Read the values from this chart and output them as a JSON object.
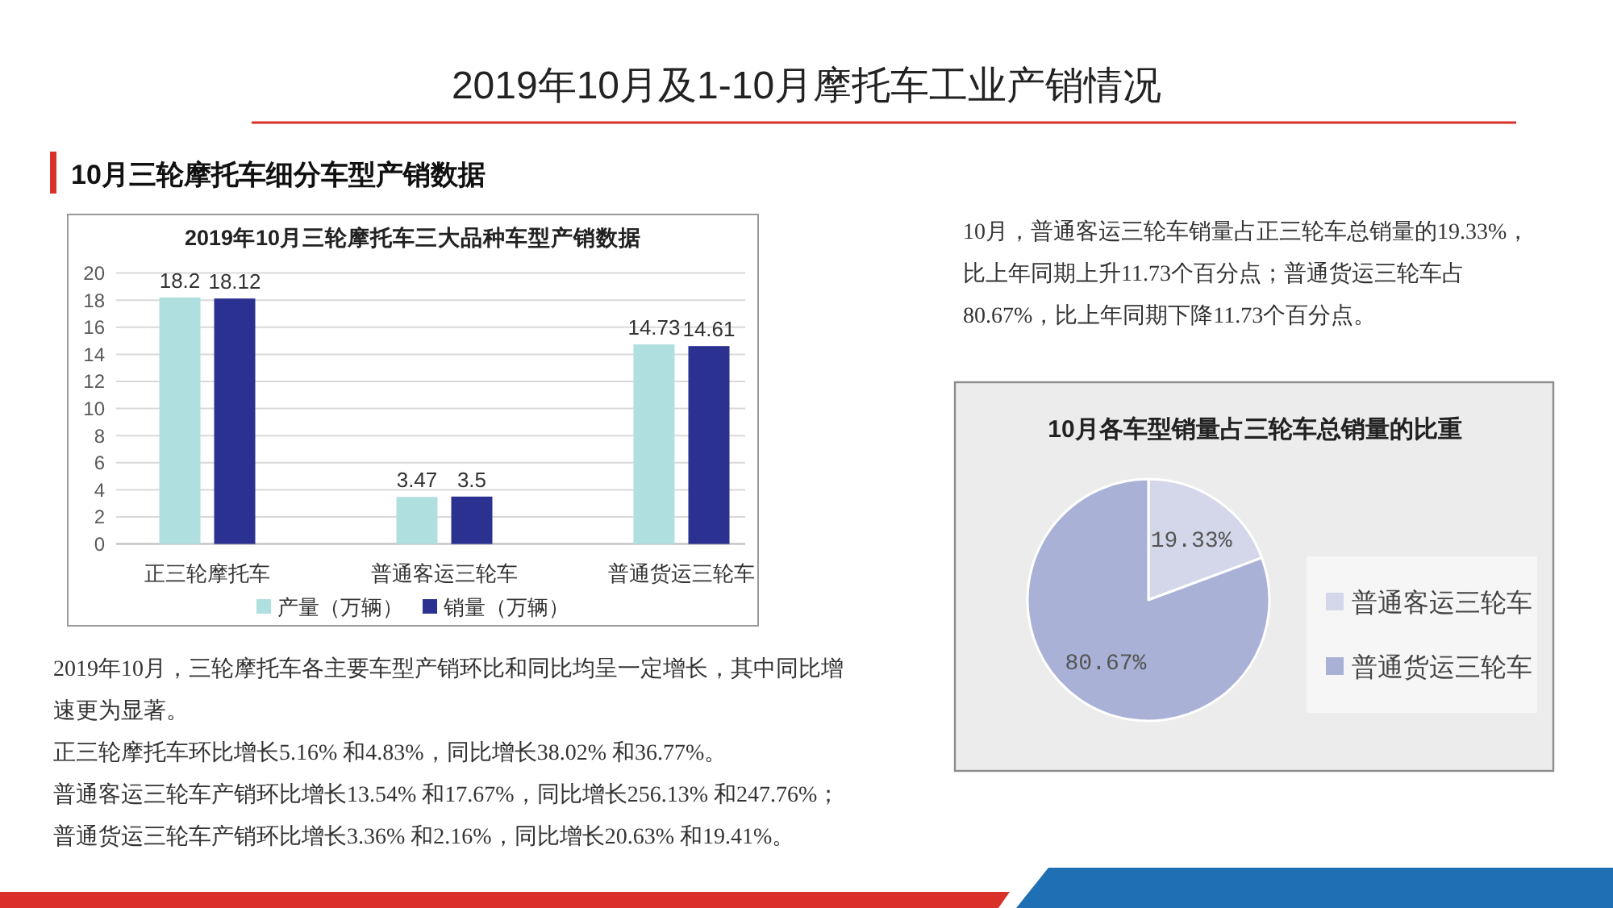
{
  "chart_data": [
    {
      "type": "other",
      "title": "2019年10月及1-10月摩托车工业产销情况",
      "subtitle": "10月三轮摩托车细分车型产销数据"
    },
    {
      "type": "bar",
      "title": "2019年10月三轮摩托车三大品种车型产销数据",
      "categories": [
        "正三轮摩托车",
        "普通客运三轮车",
        "普通货运三轮车"
      ],
      "series": [
        {
          "name": "产量（万辆）",
          "color": "#b0dfdf",
          "values": [
            18.2,
            3.47,
            14.73
          ]
        },
        {
          "name": "销量（万辆）",
          "color": "#2b3190",
          "values": [
            18.12,
            3.5,
            14.61
          ]
        }
      ],
      "ylim": [
        0,
        20
      ],
      "yticks": [
        0,
        2,
        4,
        6,
        8,
        10,
        12,
        14,
        16,
        18,
        20
      ],
      "grid": "y",
      "legend": "bottom",
      "data_labels": true,
      "annotations": [
        "2019年10月，三轮摩托车各主要车型产销环比和同比均呈一定增长，其中同比增速更为显著。",
        "正三轮摩托车环比增长5.16% 和4.83%，同比增长38.02% 和36.77%。",
        "普通客运三轮车产销环比增长13.54% 和17.67%，同比增长256.13% 和247.76%；",
        "普通货运三轮车产销环比增长3.36% 和2.16%，同比增长20.63% 和19.41%。"
      ]
    },
    {
      "type": "pie",
      "title": "10月各车型销量占三轮车总销量的比重",
      "categories": [
        "普通客运三轮车",
        "普通货运三轮车"
      ],
      "values": [
        19.33,
        80.67
      ],
      "colors": [
        "#d4d7ea",
        "#a9b1d7"
      ],
      "value_labels": [
        "19.33%",
        "80.67%"
      ],
      "legend": "right",
      "annotations": [
        "10月，普通客运三轮车销量占正三轮车总销量的19.33%，比上年同期上升11.73个百分点；普通货运三轮车占80.67%，比上年同期下降11.73个百分点。"
      ]
    }
  ]
}
